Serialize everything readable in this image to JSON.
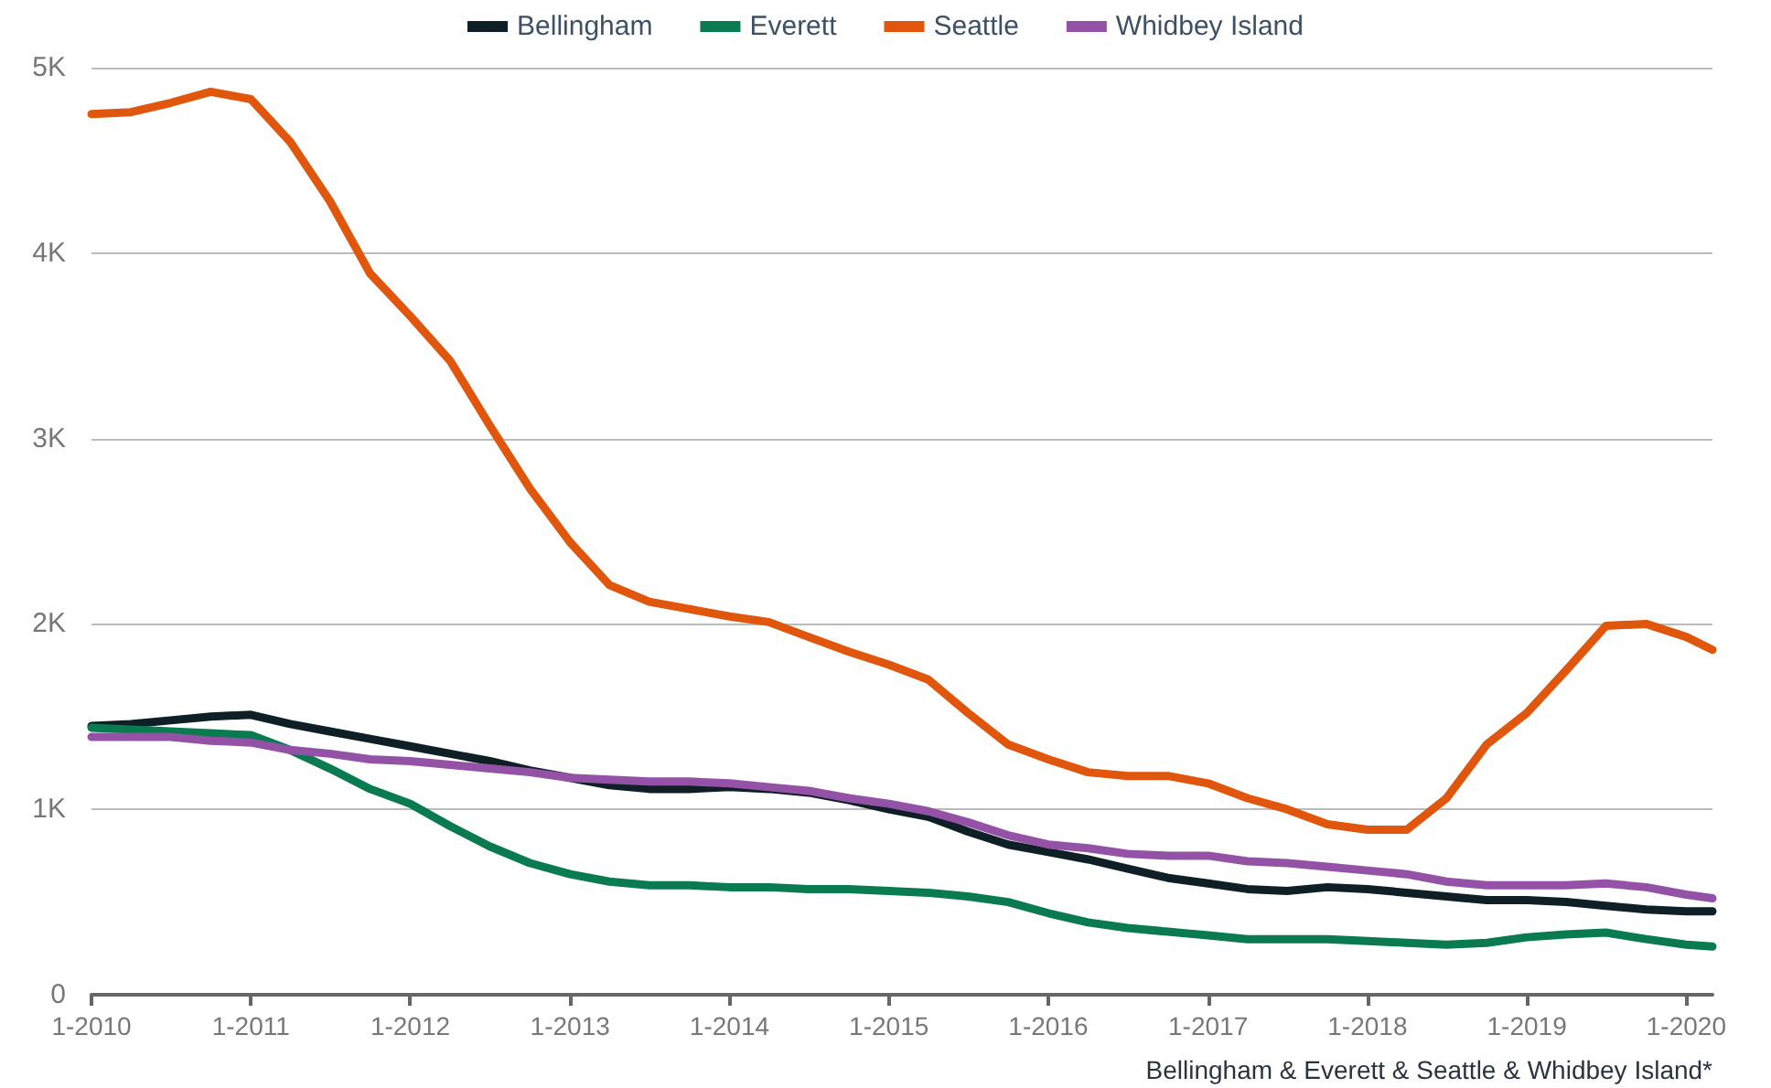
{
  "chart_data": {
    "type": "line",
    "xlabel": "Bellingham & Everett & Seattle & Whidbey Island*",
    "x": [
      "2010-01",
      "2010-04",
      "2010-07",
      "2010-10",
      "2011-01",
      "2011-04",
      "2011-07",
      "2011-10",
      "2012-01",
      "2012-04",
      "2012-07",
      "2012-10",
      "2013-01",
      "2013-04",
      "2013-07",
      "2013-10",
      "2014-01",
      "2014-04",
      "2014-07",
      "2014-10",
      "2015-01",
      "2015-04",
      "2015-07",
      "2015-10",
      "2016-01",
      "2016-04",
      "2016-07",
      "2016-10",
      "2017-01",
      "2017-04",
      "2017-07",
      "2017-10",
      "2018-01",
      "2018-04",
      "2018-07",
      "2018-10",
      "2019-01",
      "2019-04",
      "2019-07",
      "2019-10",
      "2020-01",
      "2020-03"
    ],
    "series": [
      {
        "name": "Bellingham",
        "color": "#0f1f26",
        "values": [
          1450,
          1460,
          1480,
          1500,
          1510,
          1460,
          1420,
          1380,
          1340,
          1300,
          1260,
          1210,
          1170,
          1130,
          1110,
          1110,
          1120,
          1110,
          1090,
          1050,
          1000,
          960,
          880,
          810,
          770,
          730,
          680,
          630,
          600,
          570,
          560,
          580,
          570,
          550,
          530,
          510,
          510,
          500,
          480,
          460,
          450,
          450
        ]
      },
      {
        "name": "Everett",
        "color": "#0a7a50",
        "values": [
          1440,
          1430,
          1420,
          1410,
          1400,
          1320,
          1220,
          1110,
          1030,
          910,
          800,
          710,
          650,
          610,
          590,
          590,
          580,
          580,
          570,
          570,
          560,
          550,
          530,
          500,
          440,
          390,
          360,
          340,
          320,
          300,
          300,
          300,
          290,
          280,
          270,
          280,
          310,
          325,
          335,
          300,
          270,
          260
        ]
      },
      {
        "name": "Seattle",
        "color": "#e0560c",
        "values": [
          4750,
          4760,
          4810,
          4870,
          4830,
          4600,
          4280,
          3890,
          3660,
          3420,
          3070,
          2730,
          2440,
          2210,
          2120,
          2080,
          2040,
          2010,
          1930,
          1850,
          1780,
          1700,
          1520,
          1350,
          1270,
          1200,
          1180,
          1180,
          1140,
          1060,
          1000,
          920,
          890,
          890,
          1060,
          1350,
          1520,
          1750,
          1990,
          2000,
          1930,
          1860
        ]
      },
      {
        "name": "Whidbey Island",
        "color": "#9452a6",
        "values": [
          1390,
          1390,
          1390,
          1370,
          1360,
          1320,
          1300,
          1270,
          1260,
          1240,
          1220,
          1200,
          1170,
          1160,
          1150,
          1150,
          1140,
          1120,
          1100,
          1060,
          1030,
          990,
          930,
          860,
          810,
          790,
          760,
          750,
          750,
          720,
          710,
          690,
          670,
          650,
          610,
          590,
          590,
          590,
          600,
          580,
          540,
          520
        ]
      }
    ],
    "xlim": [
      "2010-01",
      "2020-03"
    ],
    "xticks": [
      {
        "value": "2010-01",
        "label": "1-2010"
      },
      {
        "value": "2011-01",
        "label": "1-2011"
      },
      {
        "value": "2012-01",
        "label": "1-2012"
      },
      {
        "value": "2013-01",
        "label": "1-2013"
      },
      {
        "value": "2014-01",
        "label": "1-2014"
      },
      {
        "value": "2015-01",
        "label": "1-2015"
      },
      {
        "value": "2016-01",
        "label": "1-2016"
      },
      {
        "value": "2017-01",
        "label": "1-2017"
      },
      {
        "value": "2018-01",
        "label": "1-2018"
      },
      {
        "value": "2019-01",
        "label": "1-2019"
      },
      {
        "value": "2020-01",
        "label": "1-2020"
      }
    ],
    "ylim": [
      0,
      5000
    ],
    "yticks": [
      0,
      {
        "value": 1000,
        "label": "1K"
      },
      {
        "value": 2000,
        "label": "2K"
      },
      {
        "value": 3000,
        "label": "3K"
      },
      {
        "value": 4000,
        "label": "4K"
      },
      {
        "value": 5000,
        "label": "5K"
      }
    ],
    "grid": "y",
    "legend": "top",
    "marker": "none",
    "line_style": "solid"
  }
}
